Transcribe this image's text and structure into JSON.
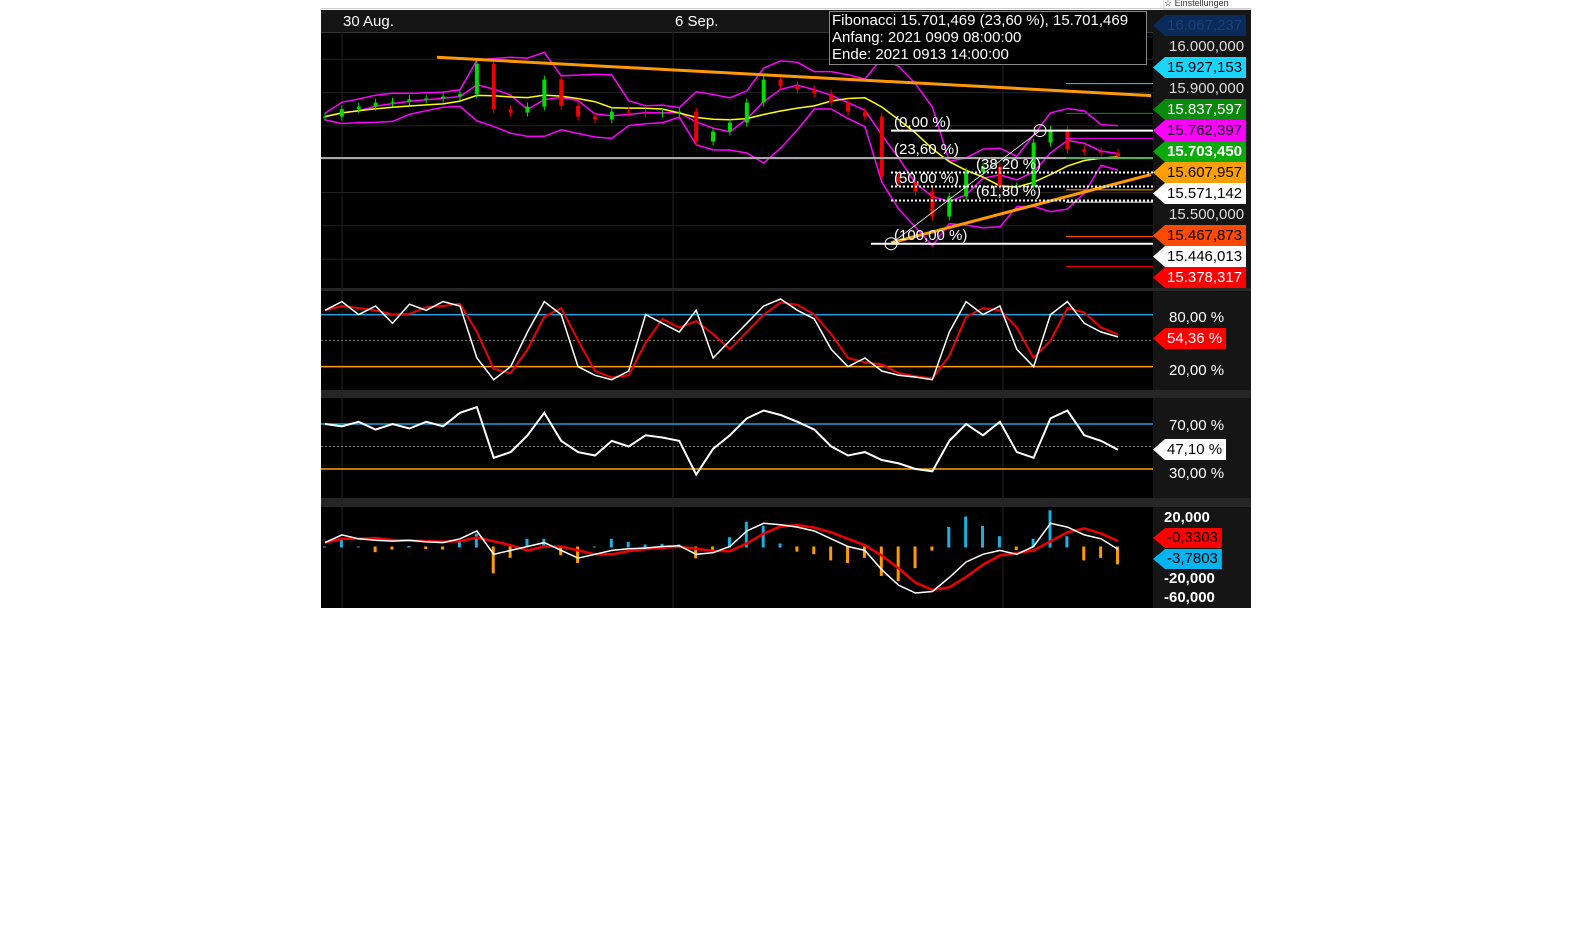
{
  "settings": {
    "label": "Einstellungen",
    "icon": "star-icon"
  },
  "header": {
    "dates": [
      "30 Aug.",
      "6 Sep."
    ]
  },
  "info_box": {
    "line1": "Fibonacci 15.701,469 (23,60 %), 15.701,469",
    "line2": "Anfang: 2021 0909 08:00:00",
    "line3": "Ende: 2021 0913 14:00:00"
  },
  "fibonacci": {
    "levels": [
      {
        "label": "(0,00 %)",
        "price": 15.786
      },
      {
        "label": "(23,60 %)",
        "price": 15.703
      },
      {
        "label": "(38,20 %)",
        "price": 15.66
      },
      {
        "label": "(50,00 %)",
        "price": 15.618
      },
      {
        "label": "(61,80 %)",
        "price": 15.576
      },
      {
        "label": "(100,00 %)",
        "price": 15.446
      }
    ]
  },
  "price_axis": {
    "ticks": [
      "16.000,000",
      "15.900,000",
      "15.500,000"
    ],
    "tags": [
      {
        "text": "16.067,237",
        "price": 16.067237,
        "bg": "#0a2a5a",
        "fg": "#1c3f77"
      },
      {
        "text": "15.927,153",
        "price": 15.927153,
        "bg": "#1ad6ff",
        "fg": "#000000"
      },
      {
        "text": "15.837,597",
        "price": 15.837597,
        "bg": "#0a8a0a",
        "fg": "#ffffff"
      },
      {
        "text": "15.762,397",
        "price": 15.762397,
        "bg": "#ff00ff",
        "fg": "#000000"
      },
      {
        "text": "15.703,450",
        "price": 15.70345,
        "bg": "#0aaa0a",
        "fg": "#ffffff"
      },
      {
        "text": "15.607,957",
        "price": 15.607957,
        "bg": "#ffa000",
        "fg": "#000000"
      },
      {
        "text": "15.571,142",
        "price": 15.571142,
        "bg": "#ffffff",
        "fg": "#000000"
      },
      {
        "text": "15.467,873",
        "price": 15.467873,
        "bg": "#ff4a00",
        "fg": "#000000"
      },
      {
        "text": "15.446,013",
        "price": 15.446013,
        "bg": "#ffffff",
        "fg": "#000000"
      },
      {
        "text": "15.378,317",
        "price": 15.378317,
        "bg": "#ff0000",
        "fg": "#ffffff"
      }
    ]
  },
  "stoch_axis": {
    "ticks": [
      "80,00 %",
      "20,00 %"
    ],
    "current": "54,36 %",
    "current_color": "#ff0000"
  },
  "rsi_axis": {
    "ticks": [
      "70,00 %",
      "30,00 %"
    ],
    "current": "47,10 %",
    "current_color": "#ffffff"
  },
  "macd_axis": {
    "ticks": [
      "20,000",
      "-20,000",
      "-60,000"
    ],
    "signal_tag": "-0,3303",
    "current": "-3,7803",
    "current_color": "#00b4f0"
  },
  "colors": {
    "up": "#00dd00",
    "down": "#ee0000",
    "bollinger": "#ff00ff",
    "ma": "#ffff00",
    "trendline": "#ff9900",
    "upper_line": "#1aa0e0",
    "lower_line": "#ffa000"
  },
  "chart_data": {
    "type": "candlestick",
    "trendlines": [
      {
        "from": 16.006,
        "to": 15.891
      },
      {
        "from": 15.449,
        "to": 15.654
      }
    ],
    "close": [
      15.828,
      15.85,
      15.858,
      15.87,
      15.873,
      15.88,
      15.882,
      15.888,
      15.895,
      15.987,
      15.85,
      15.84,
      15.858,
      15.939,
      15.86,
      15.828,
      15.82,
      15.843,
      15.84,
      15.837,
      15.84,
      15.843,
      15.753,
      15.783,
      15.81,
      15.87,
      15.939,
      15.92,
      15.909,
      15.897,
      15.87,
      15.843,
      15.828,
      15.648,
      15.633,
      15.603,
      15.528,
      15.588,
      15.663,
      15.678,
      15.618,
      15.618,
      15.75,
      15.789,
      15.73,
      15.723,
      15.72,
      15.708
    ],
    "stochastic": [
      85,
      95,
      80,
      90,
      70,
      92,
      85,
      95,
      90,
      30,
      5,
      20,
      60,
      95,
      80,
      20,
      10,
      5,
      15,
      80,
      70,
      60,
      85,
      30,
      50,
      70,
      90,
      98,
      85,
      75,
      40,
      20,
      30,
      15,
      10,
      8,
      5,
      60,
      95,
      80,
      90,
      40,
      20,
      80,
      95,
      70,
      60,
      54.36
    ],
    "rsi": [
      70,
      68,
      72,
      65,
      70,
      66,
      72,
      68,
      80,
      85,
      40,
      45,
      60,
      80,
      55,
      45,
      42,
      55,
      50,
      60,
      58,
      55,
      25,
      48,
      60,
      75,
      82,
      78,
      72,
      65,
      50,
      42,
      45,
      38,
      35,
      30,
      28,
      55,
      70,
      60,
      72,
      45,
      40,
      75,
      82,
      60,
      55,
      47.1
    ],
    "macd": [
      5,
      15,
      10,
      8,
      7,
      8,
      6,
      5,
      10,
      20,
      -10,
      -5,
      0,
      5,
      -5,
      -15,
      -10,
      -5,
      -3,
      -2,
      0,
      1,
      -10,
      -8,
      0,
      20,
      30,
      28,
      25,
      20,
      10,
      0,
      -5,
      -30,
      -50,
      -60,
      -58,
      -40,
      -20,
      -10,
      -5,
      -10,
      0,
      30,
      25,
      15,
      10,
      -3.78
    ],
    "stoch_levels": [
      80,
      20
    ],
    "rsi_levels": [
      70,
      30
    ]
  }
}
